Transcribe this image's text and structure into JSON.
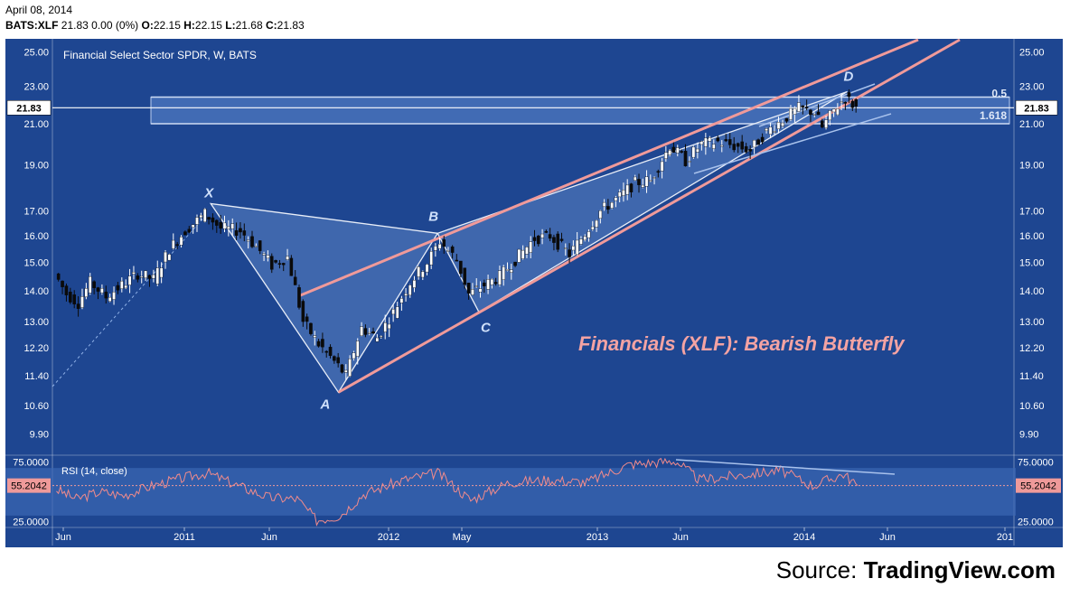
{
  "header": {
    "date": "April 08, 2014",
    "symbol": "BATS:XLF",
    "last": "21.83",
    "change": "0.00 (0%)",
    "open_label": "O:",
    "open": "22.15",
    "high_label": "H:",
    "high": "22.15",
    "low_label": "L:",
    "low": "21.68",
    "close_label": "C:",
    "close": "21.83"
  },
  "source": {
    "label": "Source:",
    "site": "TradingView.com"
  },
  "colors": {
    "panel_bg": "#1e4691",
    "rsi_band": "#3b66b3",
    "pattern_fill": "#5b83c4",
    "pattern_edge": "#e9eef8",
    "trend_line": "#f09a9a",
    "fib_zone": "#5f8ad2",
    "price_tag": "#ffffff",
    "rsi_tag": "#ef9a9a",
    "rsi_line": "#f28b8b",
    "annotation": "#f4a3a3"
  },
  "chart_data": [
    {
      "type": "candlestick",
      "title": "Financial Select Sector SPDR, W, BATS",
      "annotation": "Financials (XLF): Bearish Butterfly",
      "y_scale": "log",
      "ylim": [
        9.4,
        25.8
      ],
      "y_ticks": [
        "25.00",
        "23.00",
        "21.00",
        "19.00",
        "17.00",
        "16.00",
        "15.00",
        "14.00",
        "13.00",
        "12.20",
        "11.40",
        "10.60",
        "9.90"
      ],
      "x_tick_labels": [
        "Jun",
        "2011",
        "Jun",
        "2012",
        "May",
        "2013",
        "Jun",
        "2014",
        "Jun",
        "201"
      ],
      "x_tick_dates": [
        "2010-06-01",
        "2011-01-01",
        "2011-06-01",
        "2012-01-01",
        "2012-05-01",
        "2013-01-01",
        "2013-06-01",
        "2014-01-01",
        "2014-06-01",
        "2015-01-01"
      ],
      "last_price_label": "21.83",
      "close_series": [
        {
          "x": "2010-05-20",
          "y": 14.6
        },
        {
          "x": "2010-06-10",
          "y": 13.9
        },
        {
          "x": "2010-07-01",
          "y": 13.6
        },
        {
          "x": "2010-07-22",
          "y": 14.3
        },
        {
          "x": "2010-08-19",
          "y": 13.8
        },
        {
          "x": "2010-09-16",
          "y": 14.2
        },
        {
          "x": "2010-10-14",
          "y": 14.6
        },
        {
          "x": "2010-11-11",
          "y": 14.4
        },
        {
          "x": "2010-12-09",
          "y": 15.5
        },
        {
          "x": "2011-01-06",
          "y": 16.2
        },
        {
          "x": "2011-02-10",
          "y": 16.9
        },
        {
          "x": "2011-03-10",
          "y": 16.3
        },
        {
          "x": "2011-04-14",
          "y": 16.2
        },
        {
          "x": "2011-05-12",
          "y": 15.6
        },
        {
          "x": "2011-06-09",
          "y": 14.9
        },
        {
          "x": "2011-07-07",
          "y": 15.2
        },
        {
          "x": "2011-08-04",
          "y": 13.0
        },
        {
          "x": "2011-09-01",
          "y": 12.3
        },
        {
          "x": "2011-09-29",
          "y": 11.8
        },
        {
          "x": "2011-10-20",
          "y": 11.4
        },
        {
          "x": "2011-11-17",
          "y": 12.8
        },
        {
          "x": "2011-12-15",
          "y": 12.5
        },
        {
          "x": "2012-01-12",
          "y": 13.3
        },
        {
          "x": "2012-02-09",
          "y": 14.3
        },
        {
          "x": "2012-03-08",
          "y": 15.0
        },
        {
          "x": "2012-03-29",
          "y": 15.8
        },
        {
          "x": "2012-04-26",
          "y": 15.1
        },
        {
          "x": "2012-05-17",
          "y": 13.9
        },
        {
          "x": "2012-06-14",
          "y": 14.2
        },
        {
          "x": "2012-07-12",
          "y": 14.5
        },
        {
          "x": "2012-08-09",
          "y": 15.1
        },
        {
          "x": "2012-09-13",
          "y": 15.9
        },
        {
          "x": "2012-10-11",
          "y": 16.0
        },
        {
          "x": "2012-11-15",
          "y": 15.3
        },
        {
          "x": "2012-12-13",
          "y": 16.1
        },
        {
          "x": "2013-01-10",
          "y": 17.0
        },
        {
          "x": "2013-02-14",
          "y": 17.6
        },
        {
          "x": "2013-03-14",
          "y": 18.2
        },
        {
          "x": "2013-04-11",
          "y": 18.3
        },
        {
          "x": "2013-05-16",
          "y": 19.9
        },
        {
          "x": "2013-06-13",
          "y": 19.2
        },
        {
          "x": "2013-07-11",
          "y": 20.0
        },
        {
          "x": "2013-08-08",
          "y": 20.1
        },
        {
          "x": "2013-09-05",
          "y": 19.9
        },
        {
          "x": "2013-10-03",
          "y": 19.7
        },
        {
          "x": "2013-10-31",
          "y": 20.6
        },
        {
          "x": "2013-11-28",
          "y": 21.2
        },
        {
          "x": "2013-12-26",
          "y": 21.8
        },
        {
          "x": "2014-01-23",
          "y": 21.6
        },
        {
          "x": "2014-02-06",
          "y": 20.8
        },
        {
          "x": "2014-02-27",
          "y": 21.7
        },
        {
          "x": "2014-03-20",
          "y": 22.4
        },
        {
          "x": "2014-04-08",
          "y": 21.83
        }
      ],
      "pattern_points": [
        {
          "label": "X",
          "x": "2011-02-17",
          "y": 17.3
        },
        {
          "label": "A",
          "x": "2011-10-03",
          "y": 10.95
        },
        {
          "label": "B",
          "x": "2012-03-22",
          "y": 16.1
        },
        {
          "label": "C",
          "x": "2012-06-01",
          "y": 13.3
        },
        {
          "label": "D",
          "x": "2014-03-20",
          "y": 22.7
        }
      ],
      "fib_levels": [
        {
          "label": "0.5",
          "y": 22.4
        },
        {
          "label": "1.618",
          "y": 21.0
        }
      ]
    },
    {
      "type": "line",
      "title": "RSI (14, close)",
      "ylim": [
        20,
        80
      ],
      "y_ticks": [
        "75.0000",
        "25.0000"
      ],
      "current_value_label": "55.2042",
      "current_value": 55.2042,
      "band": [
        30,
        70
      ],
      "series": [
        {
          "x": "2010-05-20",
          "y": 52
        },
        {
          "x": "2010-06-24",
          "y": 44
        },
        {
          "x": "2010-08-05",
          "y": 50
        },
        {
          "x": "2010-09-16",
          "y": 47
        },
        {
          "x": "2010-11-04",
          "y": 55
        },
        {
          "x": "2010-12-16",
          "y": 60
        },
        {
          "x": "2011-02-10",
          "y": 66
        },
        {
          "x": "2011-04-07",
          "y": 55
        },
        {
          "x": "2011-06-02",
          "y": 45
        },
        {
          "x": "2011-07-21",
          "y": 44
        },
        {
          "x": "2011-08-25",
          "y": 26
        },
        {
          "x": "2011-10-06",
          "y": 30
        },
        {
          "x": "2011-11-17",
          "y": 48
        },
        {
          "x": "2012-01-26",
          "y": 60
        },
        {
          "x": "2012-03-22",
          "y": 66
        },
        {
          "x": "2012-05-17",
          "y": 43
        },
        {
          "x": "2012-07-26",
          "y": 58
        },
        {
          "x": "2012-10-04",
          "y": 60
        },
        {
          "x": "2012-12-13",
          "y": 58
        },
        {
          "x": "2013-02-28",
          "y": 73
        },
        {
          "x": "2013-05-23",
          "y": 76
        },
        {
          "x": "2013-07-04",
          "y": 60
        },
        {
          "x": "2013-09-12",
          "y": 64
        },
        {
          "x": "2013-11-21",
          "y": 68
        },
        {
          "x": "2014-01-16",
          "y": 55
        },
        {
          "x": "2014-03-13",
          "y": 65
        },
        {
          "x": "2014-04-08",
          "y": 55.2
        }
      ]
    }
  ]
}
